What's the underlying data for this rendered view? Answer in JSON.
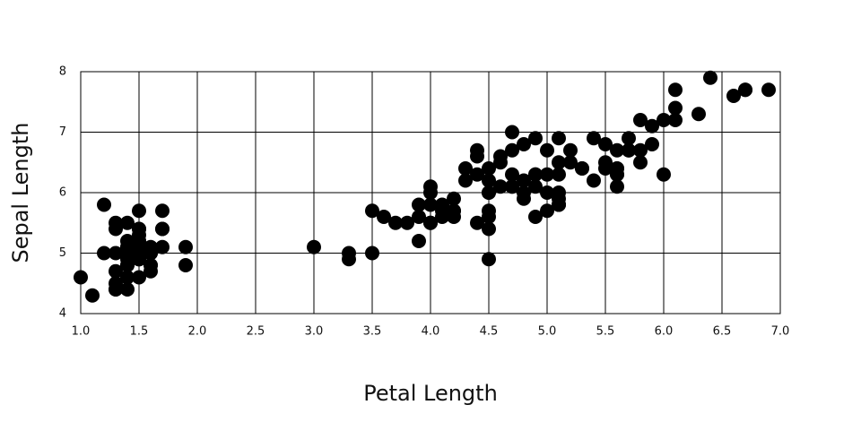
{
  "chart_data": {
    "type": "scatter",
    "x_label": "Petal Length",
    "y_label": "Sepal Length",
    "color": "#000000",
    "grid": true,
    "xlim": [
      1,
      7
    ],
    "ylim": [
      4,
      8
    ],
    "xticks": [
      {
        "value": 1,
        "label": "1.0"
      },
      {
        "value": 1.5,
        "label": "1.5"
      },
      {
        "value": 2,
        "label": "2.0"
      },
      {
        "value": 2.5,
        "label": "2.5"
      },
      {
        "value": 3,
        "label": "3.0"
      },
      {
        "value": 3.5,
        "label": "3.5"
      },
      {
        "value": 4,
        "label": "4.0"
      },
      {
        "value": 4.5,
        "label": "4.5"
      },
      {
        "value": 5,
        "label": "5.0"
      },
      {
        "value": 5.5,
        "label": "5.5"
      },
      {
        "value": 6,
        "label": "6.0"
      },
      {
        "value": 6.5,
        "label": "6.5"
      },
      {
        "value": 7,
        "label": "7.0"
      }
    ],
    "yticks": [
      4,
      5,
      6,
      7,
      8
    ],
    "x": [
      1.4,
      1.4,
      1.3,
      1.5,
      1.4,
      1.7,
      1.4,
      1.5,
      1.4,
      1.5,
      1.5,
      1.6,
      1.4,
      1.1,
      1.2,
      1.5,
      1.3,
      1.4,
      1.7,
      1.5,
      1.7,
      1.5,
      1.0,
      1.7,
      1.9,
      1.6,
      1.6,
      1.5,
      1.4,
      1.6,
      1.6,
      1.5,
      1.5,
      1.4,
      1.5,
      1.2,
      1.3,
      1.5,
      1.3,
      1.5,
      1.3,
      1.3,
      1.3,
      1.6,
      1.9,
      1.4,
      1.6,
      1.4,
      1.5,
      1.4,
      4.7,
      4.5,
      4.9,
      4.0,
      4.6,
      4.5,
      4.7,
      3.3,
      4.6,
      3.9,
      3.5,
      4.2,
      4.0,
      4.7,
      3.6,
      4.4,
      4.5,
      4.1,
      4.5,
      3.9,
      4.8,
      4.0,
      4.9,
      4.7,
      4.3,
      4.4,
      4.8,
      5.0,
      4.5,
      3.5,
      3.8,
      3.7,
      3.9,
      5.1,
      4.5,
      4.5,
      4.7,
      4.4,
      4.1,
      4.0,
      4.4,
      4.6,
      4.0,
      3.3,
      4.2,
      4.2,
      4.2,
      4.3,
      3.0,
      4.1,
      6.0,
      5.1,
      5.9,
      5.6,
      5.8,
      6.6,
      4.5,
      6.3,
      5.8,
      6.1,
      5.1,
      5.3,
      5.5,
      5.0,
      5.1,
      5.3,
      5.5,
      6.7,
      6.9,
      5.0,
      5.7,
      4.9,
      6.7,
      4.9,
      5.7,
      6.0,
      4.8,
      4.9,
      5.6,
      5.8,
      6.1,
      6.4,
      5.6,
      5.1,
      5.6,
      6.1,
      5.6,
      5.5,
      4.8,
      5.4,
      5.6,
      5.1,
      5.1,
      5.9,
      5.7,
      5.2,
      5.0,
      5.2,
      5.4,
      5.1
    ],
    "y": [
      5.1,
      4.9,
      4.7,
      4.6,
      5.0,
      5.4,
      4.6,
      5.0,
      4.4,
      4.9,
      5.4,
      4.8,
      4.8,
      4.3,
      5.8,
      5.7,
      5.4,
      5.1,
      5.7,
      5.1,
      5.4,
      5.1,
      4.6,
      5.1,
      4.8,
      5.0,
      5.0,
      5.2,
      5.2,
      4.7,
      4.8,
      5.4,
      5.2,
      5.5,
      4.9,
      5.0,
      5.5,
      4.9,
      4.4,
      5.1,
      5.0,
      4.5,
      4.4,
      5.0,
      5.1,
      4.8,
      5.1,
      4.6,
      5.3,
      5.0,
      7.0,
      6.4,
      6.9,
      5.5,
      6.5,
      5.7,
      6.3,
      4.9,
      6.6,
      5.2,
      5.0,
      5.9,
      6.0,
      6.1,
      5.6,
      6.7,
      5.6,
      5.8,
      6.2,
      5.6,
      5.9,
      6.1,
      6.3,
      6.1,
      6.4,
      6.6,
      6.8,
      6.7,
      6.0,
      5.7,
      5.5,
      5.5,
      5.8,
      6.0,
      5.4,
      6.0,
      6.7,
      6.3,
      5.6,
      5.5,
      5.5,
      6.1,
      5.8,
      5.0,
      5.6,
      5.7,
      5.7,
      6.2,
      5.1,
      5.7,
      6.3,
      5.8,
      7.1,
      6.3,
      6.5,
      7.6,
      4.9,
      7.3,
      6.7,
      7.2,
      6.5,
      6.4,
      6.8,
      5.7,
      5.8,
      6.4,
      6.5,
      7.7,
      7.7,
      6.0,
      6.9,
      5.6,
      7.7,
      6.3,
      6.7,
      7.2,
      6.2,
      6.1,
      6.4,
      7.2,
      7.4,
      7.9,
      6.4,
      6.3,
      6.1,
      7.7,
      6.3,
      6.4,
      6.0,
      6.9,
      6.7,
      6.9,
      5.8,
      6.8,
      6.7,
      6.7,
      6.3,
      6.5,
      6.2,
      5.9
    ]
  }
}
